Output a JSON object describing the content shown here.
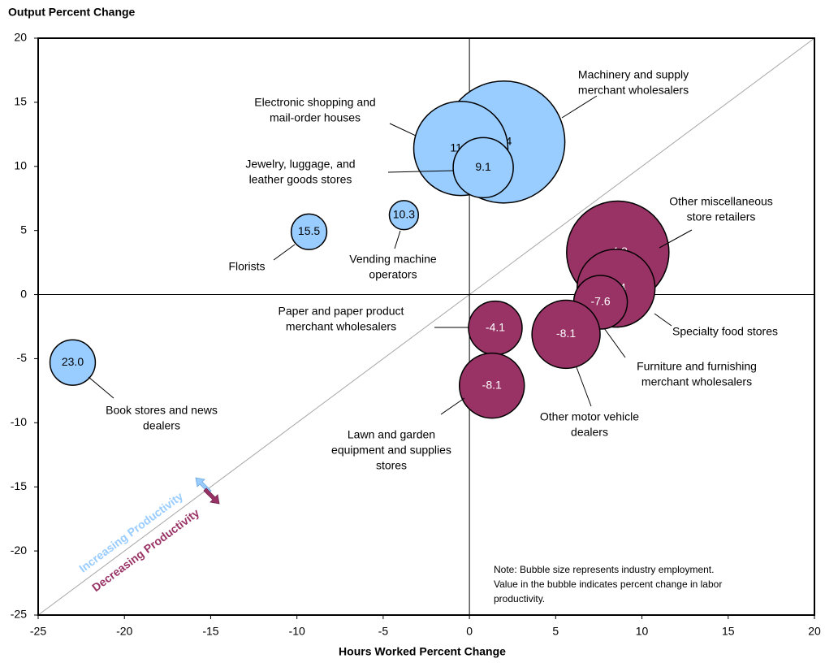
{
  "chart_data": {
    "type": "bubble",
    "ylabel": "Output Percent Change",
    "xlabel": "Hours Worked Percent Change",
    "xlim": [
      -25,
      20
    ],
    "xticks": [
      -25,
      -20,
      -15,
      -10,
      -5,
      0,
      5,
      10,
      15,
      20
    ],
    "ylim": [
      -25,
      20
    ],
    "yticks": [
      -25,
      -20,
      -15,
      -10,
      -5,
      0,
      5,
      10,
      15,
      20
    ],
    "colors": {
      "increasing": "#99ccff",
      "decreasing": "#993366"
    },
    "points": [
      {
        "name": [
          "Book stores and news",
          "dealers"
        ],
        "x": -23.0,
        "y": -5.3,
        "size": 7.8,
        "productivity": 23,
        "productivity_label": "23.0"
      },
      {
        "name": [
          "Florists"
        ],
        "x": -9.3,
        "y": 4.9,
        "size": 4.8,
        "productivity": 15.5
      },
      {
        "name": [
          "Vending machine",
          "operators"
        ],
        "x": -3.8,
        "y": 6.2,
        "size": 3.2,
        "productivity": 10.3
      },
      {
        "name": [
          "Machinery and supply",
          "merchant wholesalers"
        ],
        "x": 2.0,
        "y": 11.9,
        "size": 56.3,
        "productivity": 9.4
      },
      {
        "name": [
          "Electronic shopping and",
          "mail-order houses"
        ],
        "x": -0.5,
        "y": 11.4,
        "size": 33.6,
        "productivity": 11,
        "productivity_label": "11.0"
      },
      {
        "name": [
          "Jewelry, luggage, and",
          "leather goods stores"
        ],
        "x": 0.8,
        "y": 9.9,
        "size": 13.7,
        "productivity": 9.1
      },
      {
        "name": [
          "Other miscellaneous",
          "store retailers"
        ],
        "x": 8.6,
        "y": 3.3,
        "size": 39.7,
        "productivity": -4.8
      },
      {
        "name": [
          "Specialty food stores"
        ],
        "x": 8.5,
        "y": 0.5,
        "size": 23.0,
        "productivity": -7.4
      },
      {
        "name": [
          "Furniture and furnishing",
          "merchant wholesalers"
        ],
        "x": 7.6,
        "y": -0.6,
        "size": 10.9,
        "productivity": -7.6
      },
      {
        "name": [
          "Paper and paper product",
          "merchant wholesalers"
        ],
        "x": 1.5,
        "y": -2.6,
        "size": 10.9,
        "productivity": -4.1
      },
      {
        "name": [
          "Other motor vehicle",
          "dealers"
        ],
        "x": 5.6,
        "y": -3.1,
        "size": 17.6,
        "productivity": -8.1
      },
      {
        "name": [
          "Lawn and garden",
          "equipment and supplies",
          "stores"
        ],
        "x": 1.3,
        "y": -7.1,
        "size": 16.0,
        "productivity": -8.1
      }
    ],
    "annotations": {
      "increasing": "Increasing Productivity",
      "decreasing": "Decreasing Productivity"
    },
    "note": [
      "Note: Bubble size represents industry employment.",
      "Value in the bubble indicates percent change in labor",
      "productivity."
    ]
  }
}
